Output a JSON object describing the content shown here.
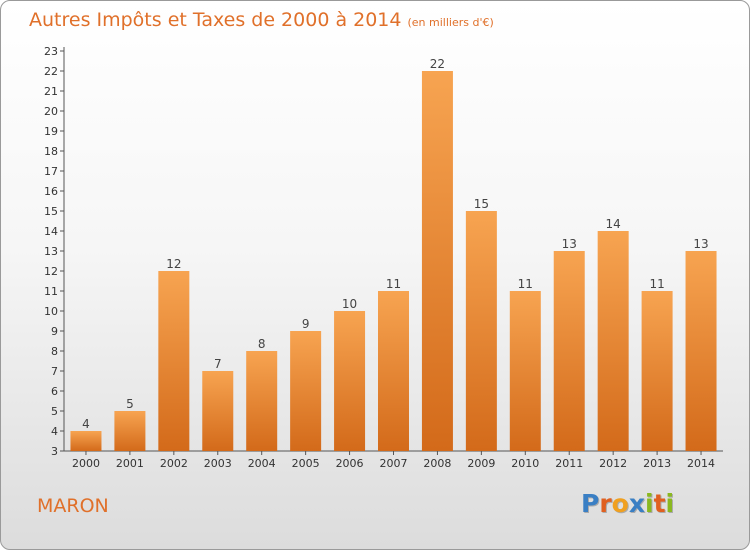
{
  "title": "Autres Impôts et Taxes de 2000 à 2014",
  "unit_label": "(en milliers d'€)",
  "commune": "MARON",
  "logo": {
    "text": "Proxiti",
    "letters": [
      {
        "ch": "P",
        "color": "#3a7fc4"
      },
      {
        "ch": "r",
        "color": "#e06020"
      },
      {
        "ch": "o",
        "color": "#f0a020"
      },
      {
        "ch": "x",
        "color": "#3a7fc4"
      },
      {
        "ch": "i",
        "color": "#8ab820"
      },
      {
        "ch": "t",
        "color": "#e06020"
      },
      {
        "ch": "i",
        "color": "#8ab820"
      }
    ]
  },
  "colors": {
    "accent": "#e0702a",
    "bar_top": "#f7a451",
    "bar_bottom": "#d36a1a",
    "axis": "#555555",
    "grid": "#cccccc"
  },
  "chart_data": {
    "type": "bar",
    "title": "Autres Impôts et Taxes de 2000 à 2014",
    "ylabel": "",
    "xlabel": "",
    "categories": [
      "2000",
      "2001",
      "2002",
      "2003",
      "2004",
      "2005",
      "2006",
      "2007",
      "2008",
      "2009",
      "2010",
      "2011",
      "2012",
      "2013",
      "2014"
    ],
    "values": [
      4,
      5,
      12,
      7,
      8,
      9,
      10,
      11,
      22,
      15,
      11,
      13,
      14,
      11,
      13
    ],
    "ylim": [
      3,
      23
    ],
    "yticks": [
      3,
      4,
      5,
      6,
      7,
      8,
      9,
      10,
      11,
      12,
      13,
      14,
      15,
      16,
      17,
      18,
      19,
      20,
      21,
      22,
      23
    ],
    "grid": false,
    "legend": "none"
  }
}
